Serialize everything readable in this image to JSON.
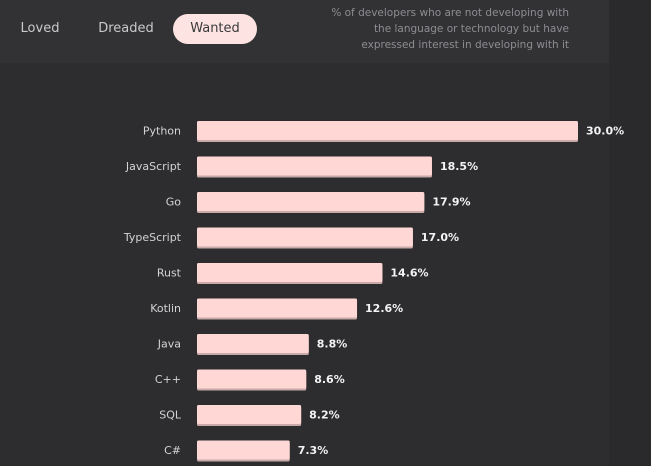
{
  "tabs": [
    {
      "label": "Loved",
      "active": false
    },
    {
      "label": "Dreaded",
      "active": false
    },
    {
      "label": "Wanted",
      "active": true
    }
  ],
  "description": "% of developers who are not developing with the language or technology but have expressed interest in developing with it",
  "colors": {
    "background": "#2d2d2f",
    "bar": "#ffd7d5",
    "active_tab": "#fde4e2"
  },
  "chart_data": {
    "type": "bar",
    "orientation": "horizontal",
    "title": "",
    "categories": [
      "Python",
      "JavaScript",
      "Go",
      "TypeScript",
      "Rust",
      "Kotlin",
      "Java",
      "C++",
      "SQL",
      "C#"
    ],
    "values": [
      30.0,
      18.5,
      17.9,
      17.0,
      14.6,
      12.6,
      8.8,
      8.6,
      8.2,
      7.3
    ],
    "value_labels": [
      "30.0%",
      "18.5%",
      "17.9%",
      "17.0%",
      "14.6%",
      "12.6%",
      "8.8%",
      "8.6%",
      "8.2%",
      "7.3%"
    ],
    "unit": "%",
    "xlim": [
      0,
      30
    ],
    "grid": false
  }
}
